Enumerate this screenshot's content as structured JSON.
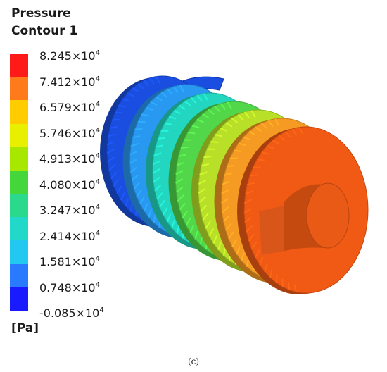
{
  "legend": {
    "title_line1": "Pressure",
    "title_line2": "Contour 1",
    "unit": "[Pa]",
    "ticks": [
      {
        "mantissa": "8.245",
        "exponent": "4"
      },
      {
        "mantissa": "7.412",
        "exponent": "4"
      },
      {
        "mantissa": "6.579",
        "exponent": "4"
      },
      {
        "mantissa": "5.746",
        "exponent": "4"
      },
      {
        "mantissa": "4.913",
        "exponent": "4"
      },
      {
        "mantissa": "4.080",
        "exponent": "4"
      },
      {
        "mantissa": "3.247",
        "exponent": "4"
      },
      {
        "mantissa": "2.414",
        "exponent": "4"
      },
      {
        "mantissa": "1.581",
        "exponent": "4"
      },
      {
        "mantissa": "0.748",
        "exponent": "4"
      },
      {
        "mantissa": "-0.085",
        "exponent": "4"
      }
    ],
    "colors_top_to_bottom": [
      "#ff1a1a",
      "#ff7a1a",
      "#ffcc00",
      "#e8f000",
      "#a8e800",
      "#44d63a",
      "#2ad98c",
      "#22d8c8",
      "#22c8f0",
      "#2a7aff",
      "#1a1aff"
    ]
  },
  "model": {
    "disc_colors_front_to_back": [
      "#f05a14",
      "#f59a22",
      "#b8e028",
      "#52d64a",
      "#22d6c0",
      "#2898f0",
      "#1a4ee0"
    ],
    "hub_color": "#c44a10"
  },
  "caption": "(c)"
}
